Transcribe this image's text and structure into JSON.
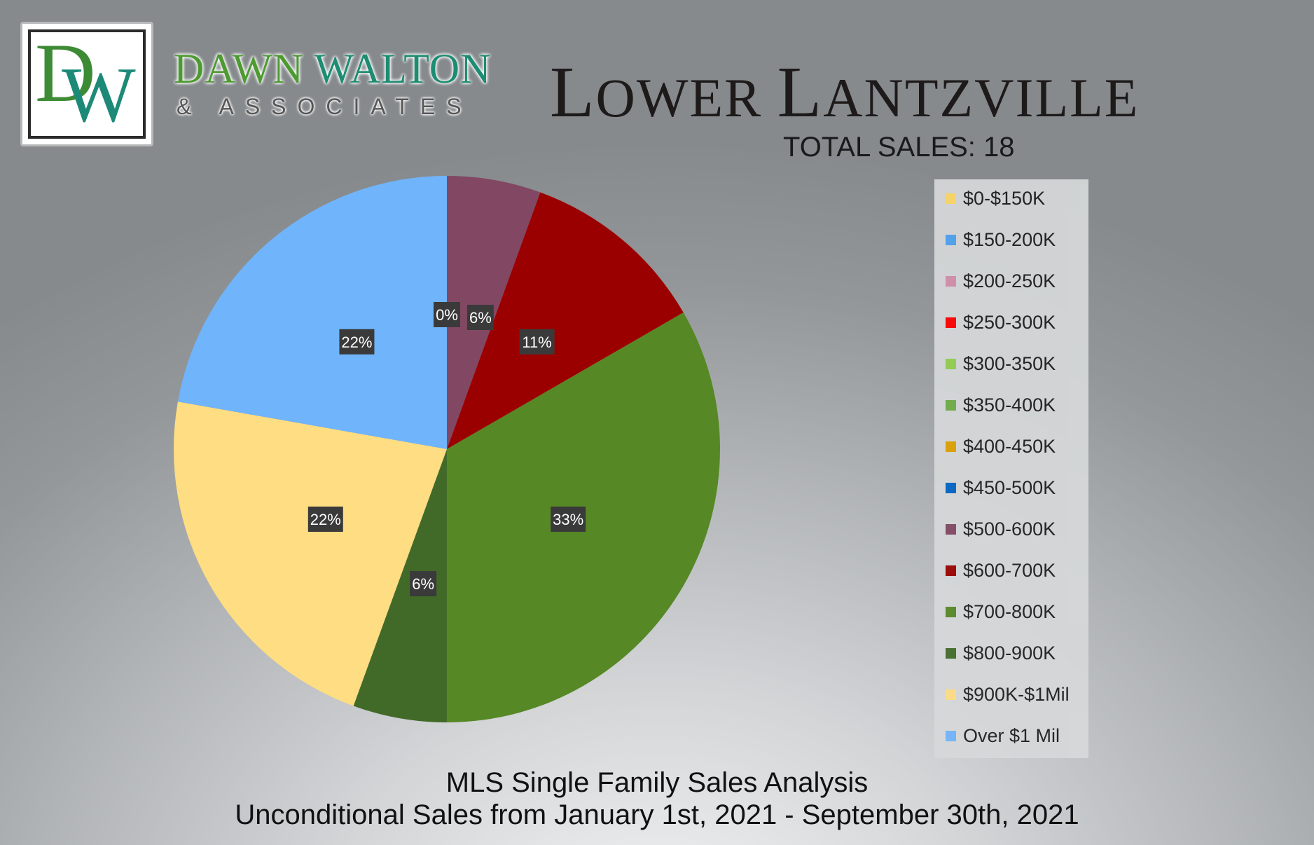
{
  "brand": {
    "logo_letter_1": "D",
    "logo_letter_2": "W",
    "name_part_1": "DAWN ",
    "name_part_2": "WALTON",
    "tagline": "& ASSOCIATES"
  },
  "header": {
    "title_1_big": "L",
    "title_1_small": "OWER ",
    "title_2_big": "L",
    "title_2_small": "ANTZVILLE",
    "total_sales": "TOTAL SALES: 18"
  },
  "footer": {
    "line_1": "MLS Single Family Sales Analysis",
    "line_2": "Unconditional Sales from January 1st, 2021 - September 30th, 2021"
  },
  "colors": {
    "label_box": "#3a3a3a",
    "label_text": "#ffffff"
  },
  "chart_data": {
    "type": "pie",
    "total": 18,
    "categories": [
      "$0-$150K",
      "$150-200K",
      "$200-250K",
      "$250-300K",
      "$300-350K",
      "$350-400K",
      "$400-450K",
      "$450-500K",
      "$500-600K",
      "$600-700K",
      "$700-800K",
      "$800-900K",
      "$900K-$1Mil",
      "Over $1 Mil"
    ],
    "values": [
      0,
      0,
      0,
      0,
      0,
      0,
      0,
      0,
      1,
      2,
      6,
      1,
      4,
      4
    ],
    "data_labels": [
      "0%",
      "0%",
      "0%",
      "0%",
      "0%",
      "0%",
      "0%",
      "0%",
      "6%",
      "11%",
      "33%",
      "6%",
      "22%",
      "22%"
    ],
    "colors": [
      "#ffd966",
      "#4fa3f2",
      "#d58fab",
      "#ff0000",
      "#92d050",
      "#70ad47",
      "#e0a100",
      "#0063c4",
      "#824863",
      "#9b0000",
      "#568825",
      "#416a28",
      "#ffdd82",
      "#70b4fb"
    ],
    "legend_position": "right"
  }
}
